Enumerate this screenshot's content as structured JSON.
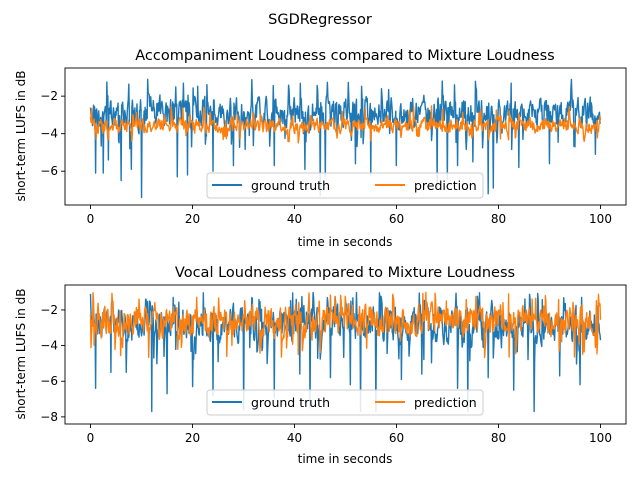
{
  "suptitle": "SGDRegressor",
  "colors": {
    "ground_truth": "#1f77b4",
    "prediction": "#ff7f0e"
  },
  "chart_data": [
    {
      "type": "line",
      "title": "Accompaniment Loudness compared to Mixture Loudness",
      "xlabel": "time in seconds",
      "ylabel": "short-term LUFS in dB",
      "xlim": [
        -5,
        105
      ],
      "ylim": [
        -7.8,
        -0.5
      ],
      "xticks": [
        0,
        20,
        40,
        60,
        80,
        100
      ],
      "yticks": [
        -6,
        -4,
        -2
      ],
      "legend": {
        "placement": "lower-center",
        "entries": [
          "ground truth",
          "prediction"
        ]
      },
      "series": [
        {
          "name": "ground truth",
          "color": "#1f77b4",
          "x_range": [
            0,
            100
          ],
          "n_points": 1000,
          "pattern": {
            "mean": -2.9,
            "spread": 0.75,
            "min": -7.4,
            "max": -1.1,
            "dips": [
              [
                1,
                -6.1
              ],
              [
                2.5,
                -6.1
              ],
              [
                3.5,
                -5.4
              ],
              [
                6,
                -6.5
              ],
              [
                8,
                -5.9
              ],
              [
                10,
                -7.4
              ],
              [
                17,
                -6.3
              ],
              [
                19,
                -6.2
              ],
              [
                24,
                -6.0
              ],
              [
                28,
                -5.7
              ],
              [
                36,
                -5.7
              ],
              [
                42,
                -5.9
              ],
              [
                45,
                -7.3
              ],
              [
                46,
                -6.3
              ],
              [
                52,
                -5.6
              ],
              [
                55,
                -6.2
              ],
              [
                60,
                -5.7
              ],
              [
                68,
                -6.8
              ],
              [
                70,
                -6.4
              ],
              [
                72,
                -5.7
              ],
              [
                75,
                -5.5
              ],
              [
                78,
                -7.2
              ],
              [
                79,
                -6.9
              ],
              [
                84,
                -5.8
              ],
              [
                90,
                -5.6
              ],
              [
                95,
                -4.7
              ],
              [
                99,
                -5.1
              ]
            ]
          }
        },
        {
          "name": "prediction",
          "color": "#ff7f0e",
          "x_range": [
            0,
            100
          ],
          "n_points": 1000,
          "pattern": {
            "mean": -3.6,
            "spread": 0.35,
            "min": -4.7,
            "max": -2.5
          }
        }
      ]
    },
    {
      "type": "line",
      "title": "Vocal Loudness compared to Mixture Loudness",
      "xlabel": "time in seconds",
      "ylabel": "short-term LUFS in dB",
      "xlim": [
        -5,
        105
      ],
      "ylim": [
        -8.4,
        -0.6
      ],
      "xticks": [
        0,
        20,
        40,
        60,
        80,
        100
      ],
      "yticks": [
        -8,
        -6,
        -4,
        -2
      ],
      "legend": {
        "placement": "lower-center",
        "entries": [
          "ground truth",
          "prediction"
        ]
      },
      "series": [
        {
          "name": "ground truth",
          "color": "#1f77b4",
          "x_range": [
            0,
            100
          ],
          "n_points": 1000,
          "pattern": {
            "mean": -2.8,
            "spread": 0.9,
            "min": -7.8,
            "max": -1.0,
            "dips": [
              [
                1,
                -6.4
              ],
              [
                4,
                -5.5
              ],
              [
                7,
                -5.5
              ],
              [
                12,
                -7.7
              ],
              [
                15,
                -6.7
              ],
              [
                20,
                -6.3
              ],
              [
                24,
                -6.8
              ],
              [
                30,
                -7.6
              ],
              [
                36,
                -6.9
              ],
              [
                41,
                -5.6
              ],
              [
                43,
                -7.5
              ],
              [
                47,
                -5.8
              ],
              [
                51,
                -6.2
              ],
              [
                53,
                -7.7
              ],
              [
                56,
                -7.7
              ],
              [
                61,
                -5.9
              ],
              [
                65,
                -5.6
              ],
              [
                72,
                -6.4
              ],
              [
                74,
                -7.7
              ],
              [
                78,
                -5.8
              ],
              [
                83,
                -6.5
              ],
              [
                87,
                -7.7
              ],
              [
                92,
                -5.7
              ],
              [
                96,
                -6.2
              ]
            ]
          }
        },
        {
          "name": "prediction",
          "color": "#ff7f0e",
          "x_range": [
            0,
            100
          ],
          "n_points": 1000,
          "pattern": {
            "mean": -2.6,
            "spread": 0.8,
            "min": -5.2,
            "max": -1.0
          }
        }
      ]
    }
  ]
}
